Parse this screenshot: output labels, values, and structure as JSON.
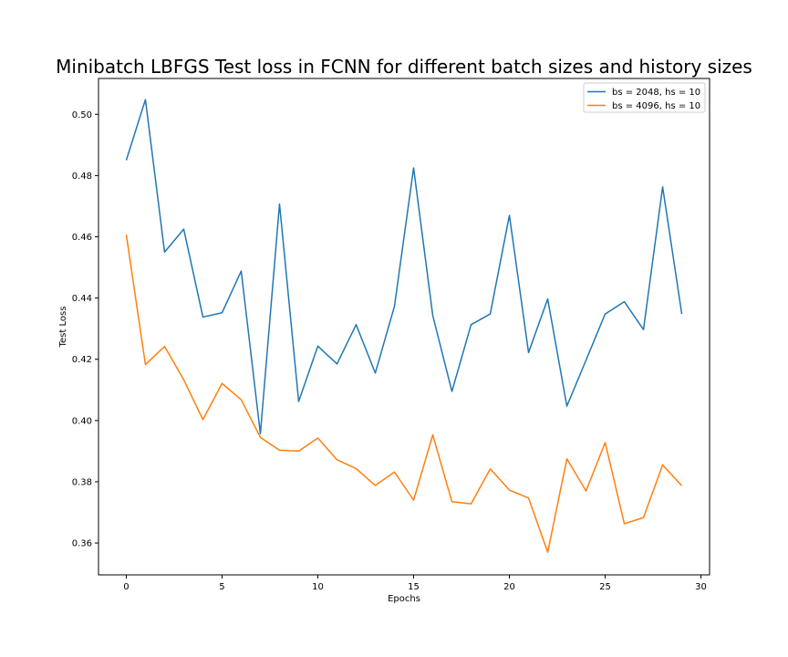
{
  "chart_data": {
    "type": "line",
    "title": "Minibatch LBFGS Test loss in FCNN for different batch sizes and history sizes",
    "xlabel": "Epochs",
    "ylabel": "Test Loss",
    "xlim": [
      -1.45,
      30.45
    ],
    "ylim": [
      0.3496,
      0.5117
    ],
    "xticks": [
      0,
      5,
      10,
      15,
      20,
      25,
      30
    ],
    "yticks": [
      0.36,
      0.38,
      0.4,
      0.42,
      0.44,
      0.46,
      0.48,
      0.5
    ],
    "ytick_labels": [
      "0.36",
      "0.38",
      "0.40",
      "0.42",
      "0.44",
      "0.46",
      "0.48",
      "0.50"
    ],
    "grid": false,
    "legend_position": "top-right",
    "x": [
      0,
      1,
      2,
      3,
      4,
      5,
      6,
      7,
      8,
      9,
      10,
      11,
      12,
      13,
      14,
      15,
      16,
      17,
      18,
      19,
      20,
      21,
      22,
      23,
      24,
      25,
      26,
      27,
      28,
      29
    ],
    "series": [
      {
        "name": "bs = 2048, hs = 10",
        "color": "#1f77b4",
        "values": [
          0.485,
          0.5048,
          0.455,
          0.4625,
          0.4338,
          0.4352,
          0.4488,
          0.3957,
          0.4707,
          0.4062,
          0.4243,
          0.4185,
          0.4313,
          0.4155,
          0.4373,
          0.4825,
          0.4343,
          0.4095,
          0.4313,
          0.4348,
          0.467,
          0.4222,
          0.4397,
          0.4047,
          0.4197,
          0.4348,
          0.4388,
          0.4297,
          0.4763,
          0.4348
        ]
      },
      {
        "name": "bs = 4096, hs = 10",
        "color": "#ff7f0e",
        "values": [
          0.4607,
          0.4183,
          0.4242,
          0.4133,
          0.4003,
          0.4121,
          0.4068,
          0.3945,
          0.3903,
          0.39,
          0.3943,
          0.3872,
          0.3843,
          0.3788,
          0.3832,
          0.374,
          0.3953,
          0.3735,
          0.3728,
          0.3842,
          0.3773,
          0.3747,
          0.357,
          0.3875,
          0.377,
          0.3928,
          0.3663,
          0.3683,
          0.3855,
          0.3787
        ]
      }
    ]
  }
}
